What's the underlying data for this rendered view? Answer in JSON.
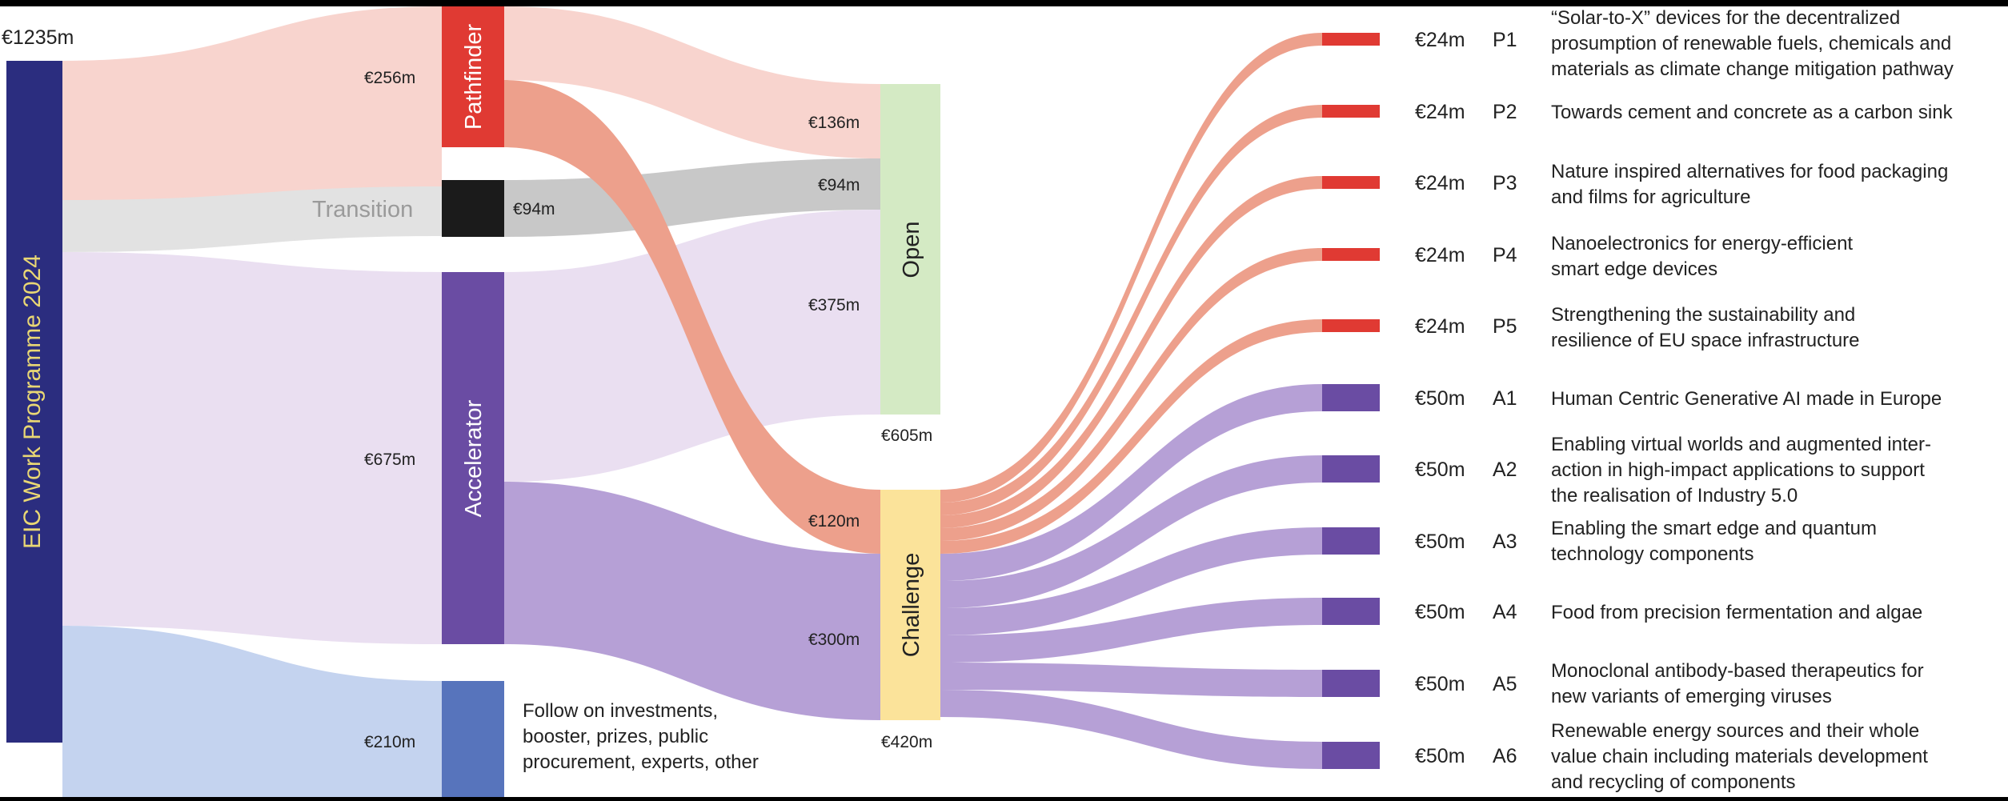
{
  "title": "EIC Work Programme 2024",
  "total": "€1235m",
  "streams": {
    "pathfinder": {
      "label": "Pathfinder",
      "amount": "€256m"
    },
    "transition": {
      "label": "Transition",
      "amount": "€94m"
    },
    "accelerator": {
      "label": "Accelerator",
      "amount": "€675m"
    },
    "other": {
      "amount": "€210m",
      "description_lines": [
        "Follow on investments,",
        "booster, prizes, public",
        "procurement, experts, other"
      ]
    }
  },
  "flows": {
    "pathfinder_open": "€136m",
    "transition_open": "€94m",
    "accelerator_open": "€375m",
    "pathfinder_challenge": "€120m",
    "accelerator_challenge": "€300m"
  },
  "calls": {
    "open": {
      "label": "Open",
      "total": "€605m"
    },
    "challenge": {
      "label": "Challenge",
      "total": "€420m"
    }
  },
  "challenges": [
    {
      "amount": "€24m",
      "code": "P1",
      "lines": [
        "“Solar-to-X” devices for the decentralized",
        "prosumption of renewable fuels, chemicals and",
        "materials as climate change mitigation pathway"
      ]
    },
    {
      "amount": "€24m",
      "code": "P2",
      "lines": [
        "Towards cement and concrete as a carbon sink"
      ]
    },
    {
      "amount": "€24m",
      "code": "P3",
      "lines": [
        "Nature inspired alternatives for food packaging",
        "and films for agriculture"
      ]
    },
    {
      "amount": "€24m",
      "code": "P4",
      "lines": [
        "Nanoelectronics for energy-efficient",
        "smart edge devices"
      ]
    },
    {
      "amount": "€24m",
      "code": "P5",
      "lines": [
        "Strengthening the sustainability and",
        "resilience of EU space infrastructure"
      ]
    },
    {
      "amount": "€50m",
      "code": "A1",
      "lines": [
        "Human Centric Generative AI made in Europe"
      ]
    },
    {
      "amount": "€50m",
      "code": "A2",
      "lines": [
        "Enabling virtual worlds and augmented inter-",
        "action in high-impact applications to support",
        "the realisation of Industry 5.0"
      ]
    },
    {
      "amount": "€50m",
      "code": "A3",
      "lines": [
        "Enabling the smart edge and quantum",
        "technology components"
      ]
    },
    {
      "amount": "€50m",
      "code": "A4",
      "lines": [
        "Food from precision fermentation and algae"
      ]
    },
    {
      "amount": "€50m",
      "code": "A5",
      "lines": [
        "Monoclonal antibody-based therapeutics for",
        "new variants of emerging viruses"
      ]
    },
    {
      "amount": "€50m",
      "code": "A6",
      "lines": [
        "Renewable energy sources and their whole",
        "value chain including materials development",
        "and recycling of components"
      ]
    }
  ],
  "colors": {
    "programme": "#2B2D7F",
    "programme_text": "#E9D774",
    "pathfinder": "#E03A33",
    "pathfinder_flow": "#F8D4CE",
    "pathfinder_challenge_flow": "#EDA08C",
    "transition": "#1B1B1B",
    "transition_flow": "#E2E2E2",
    "transition_open_flow": "#C8C8C8",
    "transition_label": "#9A9A9A",
    "accelerator": "#6A4CA3",
    "accelerator_flow": "#EADFF1",
    "accelerator_challenge_flow": "#B6A0D6",
    "other": "#5774BC",
    "other_flow": "#C4D3EF",
    "open": "#D4EAC4",
    "challenge": "#FBE39A"
  }
}
